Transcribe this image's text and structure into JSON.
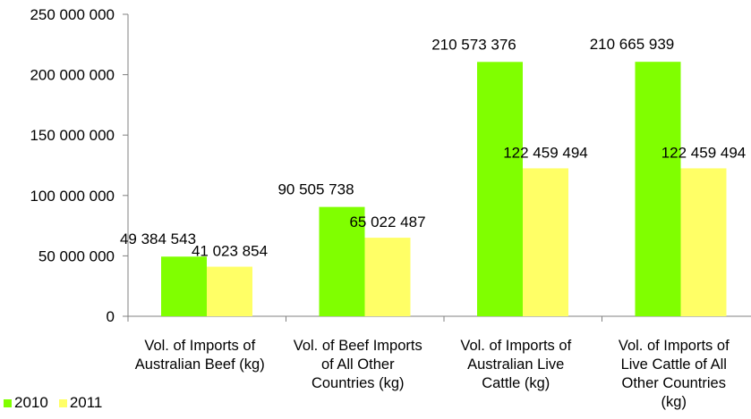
{
  "chart_data": {
    "type": "bar",
    "title": "",
    "xlabel": "",
    "ylabel": "",
    "ylim": [
      0,
      250000000
    ],
    "yticks": [
      0,
      50000000,
      100000000,
      150000000,
      200000000,
      250000000
    ],
    "ytick_labels": [
      "0",
      "50 000 000",
      "100 000 000",
      "150 000 000",
      "200 000 000",
      "250 000 000"
    ],
    "grid": false,
    "legend_position": "bottom-left",
    "categories": [
      [
        "Vol. of Imports of",
        "Australian Beef (kg)"
      ],
      [
        "Vol. of Beef Imports",
        "of All Other",
        "Countries (kg)"
      ],
      [
        "Vol. of Imports of",
        "Australian Live",
        "Cattle (kg)"
      ],
      [
        "Vol. of Imports of",
        "Live Cattle  of  All",
        "Other Countries",
        "(kg)"
      ]
    ],
    "series": [
      {
        "name": "2010",
        "color": "#80ff00",
        "values": [
          49384543,
          90505738,
          210573376,
          210665939
        ],
        "labels": [
          "49 384 543",
          "90 505 738",
          "210 573 376",
          "210 665 939"
        ]
      },
      {
        "name": "2011",
        "color": "#ffff66",
        "values": [
          41023854,
          65022487,
          122459494,
          122459494
        ],
        "labels": [
          "41 023 854",
          "65 022 487",
          "122 459 494",
          "122 459 494"
        ]
      }
    ]
  }
}
